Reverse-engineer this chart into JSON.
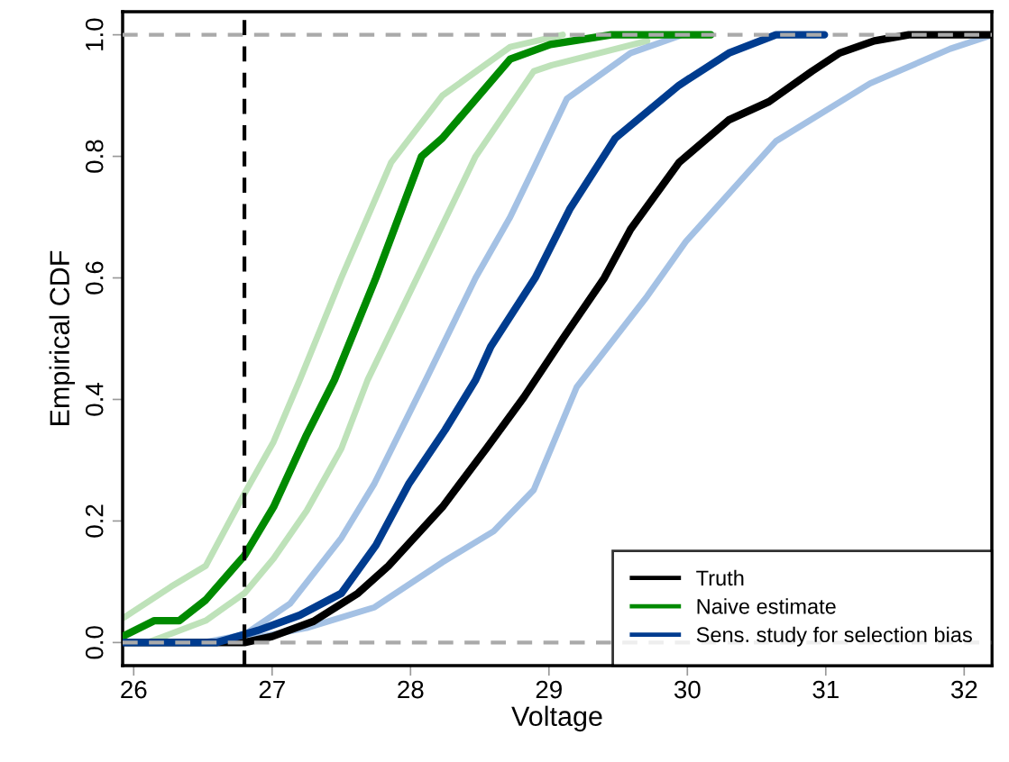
{
  "chart_data": {
    "type": "line",
    "xlabel": "Voltage",
    "ylabel": "Empirical CDF",
    "xlim": [
      25.92,
      32.2
    ],
    "ylim": [
      -0.038,
      1.038
    ],
    "xticks": [
      26,
      27,
      28,
      29,
      30,
      31,
      32
    ],
    "yticks": [
      {
        "value": 0,
        "label": "0.0"
      },
      {
        "value": 0.2,
        "label": "0.2"
      },
      {
        "value": 0.4,
        "label": "0.4"
      },
      {
        "value": 0.6,
        "label": "0.6"
      },
      {
        "value": 0.8,
        "label": "0.8"
      },
      {
        "value": 1,
        "label": "1.0"
      }
    ],
    "grid": false,
    "legend": "bottom right",
    "marker": "none",
    "line_style": "solid",
    "ref_lines": [
      {
        "axis": "y",
        "value": 0,
        "color": "#aaaaaa",
        "line_style": "dashed"
      },
      {
        "axis": "y",
        "value": 1,
        "color": "#aaaaaa",
        "line_style": "dashed"
      },
      {
        "axis": "x",
        "value": 26.8,
        "color": "#000000",
        "line_style": "dashed"
      }
    ],
    "series": [
      {
        "color": "#a8d8a2",
        "x": [
          25.93,
          26.27,
          26.52,
          26.8,
          27.01,
          27.2,
          27.5,
          27.86,
          28.23,
          28.72,
          29.1
        ],
        "values": [
          0.041,
          0.092,
          0.126,
          0.245,
          0.33,
          0.432,
          0.6,
          0.79,
          0.9,
          0.98,
          1.0
        ]
      },
      {
        "color": "#a8d8a2",
        "x": [
          25.92,
          26.1,
          26.22,
          26.52,
          26.8,
          27.01,
          27.25,
          27.5,
          27.69,
          28.11,
          28.47,
          28.89,
          29.02,
          29.71
        ],
        "values": [
          0,
          0,
          0.01,
          0.036,
          0.081,
          0.138,
          0.217,
          0.319,
          0.432,
          0.63,
          0.8,
          0.94,
          0.95,
          0.99
        ]
      },
      {
        "color": "#86acdb",
        "x": [
          25.92,
          26.5,
          26.8,
          27.13,
          27.5,
          27.74,
          28.11,
          28.47,
          28.72,
          28.89,
          29.13,
          29.59,
          29.94
        ],
        "values": [
          0,
          0,
          0.013,
          0.064,
          0.172,
          0.262,
          0.432,
          0.6,
          0.7,
          0.78,
          0.895,
          0.97,
          0.998
        ]
      },
      {
        "color": "#86acdb",
        "x": [
          25.92,
          26.7,
          27.25,
          27.74,
          28.23,
          28.6,
          28.89,
          29.2,
          29.71,
          29.99,
          30.64,
          31.32,
          31.9,
          32.18
        ],
        "values": [
          0,
          0,
          0.024,
          0.058,
          0.132,
          0.183,
          0.251,
          0.42,
          0.57,
          0.66,
          0.825,
          0.92,
          0.977,
          0.998
        ]
      },
      {
        "name": "Truth",
        "color": "#000000",
        "x": [
          25.92,
          26.8,
          27.0,
          27.3,
          27.62,
          27.84,
          28.23,
          28.55,
          28.82,
          29.1,
          29.4,
          29.59,
          29.94,
          30.3,
          30.59,
          30.9,
          31.1,
          31.35,
          31.6,
          32.2
        ],
        "values": [
          0,
          0,
          0.01,
          0.035,
          0.081,
          0.126,
          0.223,
          0.32,
          0.404,
          0.5,
          0.6,
          0.68,
          0.79,
          0.86,
          0.89,
          0.94,
          0.97,
          0.99,
          1.0,
          1.0
        ]
      },
      {
        "name": "Naive estimate",
        "color": "#008a00",
        "x": [
          25.92,
          26.15,
          26.33,
          26.52,
          26.8,
          27.01,
          27.25,
          27.45,
          27.75,
          28.08,
          28.23,
          28.72,
          29.01,
          29.45,
          30.17
        ],
        "values": [
          0.01,
          0.036,
          0.036,
          0.07,
          0.143,
          0.223,
          0.342,
          0.432,
          0.6,
          0.8,
          0.83,
          0.96,
          0.984,
          1.0,
          1.0
        ]
      },
      {
        "name": "Sens. study for selection bias",
        "color": "#003c8f",
        "x": [
          25.92,
          26.6,
          26.9,
          27.2,
          27.5,
          27.75,
          27.99,
          28.25,
          28.47,
          28.58,
          28.9,
          29.15,
          29.48,
          29.94,
          30.3,
          30.64,
          30.99
        ],
        "values": [
          0,
          0,
          0.02,
          0.045,
          0.081,
          0.16,
          0.262,
          0.35,
          0.432,
          0.487,
          0.6,
          0.713,
          0.83,
          0.917,
          0.97,
          1.0,
          1.0
        ]
      }
    ]
  }
}
